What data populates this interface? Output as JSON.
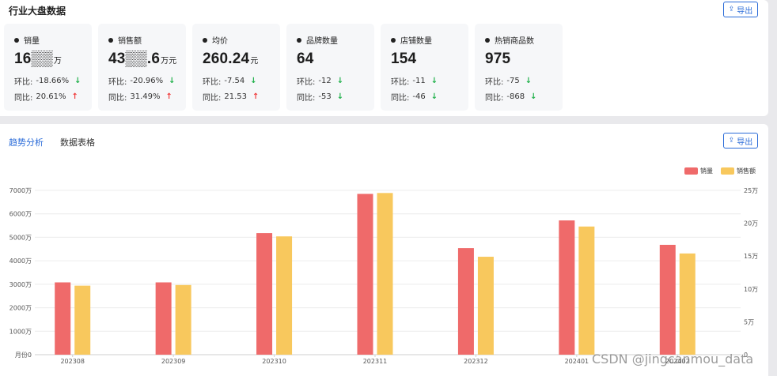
{
  "top_panel": {
    "title": "行业大盘数据",
    "export_label": "导出",
    "export_icon": "export-icon",
    "cards": [
      {
        "label": "销量",
        "value": "16▒▒",
        "unit": "万",
        "mom_label": "环比:",
        "mom_value": "-18.66%",
        "mom_dir": "down",
        "yoy_label": "同比:",
        "yoy_value": "20.61%",
        "yoy_dir": "up"
      },
      {
        "label": "销售额",
        "value": "43▒▒.6",
        "unit": "万元",
        "mom_label": "环比:",
        "mom_value": "-20.96%",
        "mom_dir": "down",
        "yoy_label": "同比:",
        "yoy_value": "31.49%",
        "yoy_dir": "up"
      },
      {
        "label": "均价",
        "value": "260.24",
        "unit": "元",
        "mom_label": "环比:",
        "mom_value": "-7.54",
        "mom_dir": "down",
        "yoy_label": "同比:",
        "yoy_value": "21.53",
        "yoy_dir": "up"
      },
      {
        "label": "品牌数量",
        "value": "64",
        "unit": "",
        "mom_label": "环比:",
        "mom_value": "-12",
        "mom_dir": "down",
        "yoy_label": "同比:",
        "yoy_value": "-53",
        "yoy_dir": "down"
      },
      {
        "label": "店铺数量",
        "value": "154",
        "unit": "",
        "mom_label": "环比:",
        "mom_value": "-11",
        "mom_dir": "down",
        "yoy_label": "同比:",
        "yoy_value": "-46",
        "yoy_dir": "down"
      },
      {
        "label": "热销商品数",
        "value": "975",
        "unit": "",
        "mom_label": "环比:",
        "mom_value": "-75",
        "mom_dir": "down",
        "yoy_label": "同比:",
        "yoy_value": "-868",
        "yoy_dir": "down"
      }
    ]
  },
  "bottom_panel": {
    "tabs": [
      {
        "label": "趋势分析",
        "active": true
      },
      {
        "label": "数据表格",
        "active": false
      }
    ],
    "export_label": "导出",
    "export_icon": "export-icon"
  },
  "watermark": "CSDN @jingcanmou_data",
  "colors": {
    "sales_volume": "#ef6a6a",
    "sales_amount": "#f8c85d",
    "accent": "#2a6bd8",
    "down": "#22b14c",
    "up": "#f03c3c"
  },
  "chart_data": {
    "type": "bar",
    "categories": [
      "202308",
      "202309",
      "202310",
      "202311",
      "202312",
      "202401",
      "202402"
    ],
    "series": [
      {
        "name": "销量",
        "axis": "left",
        "values": [
          3080,
          3080,
          5180,
          6850,
          4540,
          5720,
          4680
        ]
      },
      {
        "name": "销售额",
        "axis": "right",
        "values": [
          10.5,
          10.6,
          18.0,
          24.6,
          14.9,
          19.5,
          15.4
        ]
      }
    ],
    "y_left": {
      "ticks": [
        "月份0",
        "1000万",
        "2000万",
        "3000万",
        "4000万",
        "5000万",
        "6000万",
        "7000万"
      ],
      "range": [
        0,
        7000
      ]
    },
    "y_right": {
      "ticks": [
        "0",
        "5万",
        "10万",
        "15万",
        "20万",
        "25万"
      ],
      "range": [
        0,
        25
      ]
    },
    "legend_position": "top-right",
    "grid": true
  }
}
